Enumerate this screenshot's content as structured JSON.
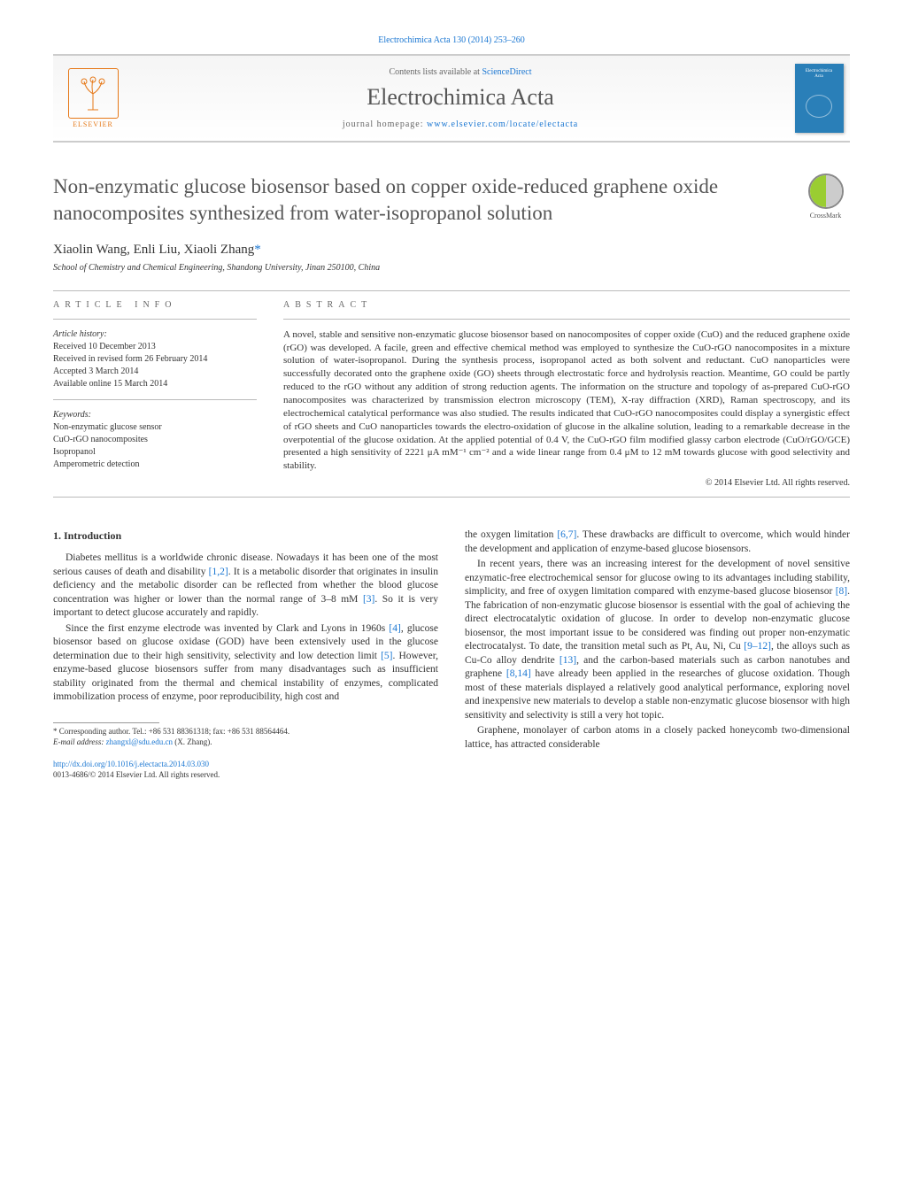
{
  "meta": {
    "citation": "Electrochimica Acta 130 (2014) 253–260",
    "citation_link_text": "Electrochimica Acta 130 (2014) 253–260"
  },
  "header": {
    "publisher": "ELSEVIER",
    "contents_text": "Contents lists available at ",
    "contents_link": "ScienceDirect",
    "journal": "Electrochimica Acta",
    "homepage_label": "journal homepage: ",
    "homepage_url": "www.elsevier.com/locate/electacta",
    "cover_line1": "Electrochimica",
    "cover_line2": "Acta"
  },
  "crossmark": {
    "label": "CrossMark"
  },
  "title": "Non-enzymatic glucose biosensor based on copper oxide-reduced graphene oxide nanocomposites synthesized from water-isopropanol solution",
  "authors": "Xiaolin Wang, Enli Liu, Xiaoli Zhang",
  "corr_symbol": "*",
  "affiliation": "School of Chemistry and Chemical Engineering, Shandong University, Jinan 250100, China",
  "info": {
    "heading": "ARTICLE INFO",
    "history_label": "Article history:",
    "received": "Received 10 December 2013",
    "revised": "Received in revised form 26 February 2014",
    "accepted": "Accepted 3 March 2014",
    "online": "Available online 15 March 2014",
    "keywords_label": "Keywords:",
    "kw1": "Non-enzymatic glucose sensor",
    "kw2": "CuO-rGO nanocomposites",
    "kw3": "Isopropanol",
    "kw4": "Amperometric detection"
  },
  "abstract": {
    "heading": "ABSTRACT",
    "text": "A novel, stable and sensitive non-enzymatic glucose biosensor based on nanocomposites of copper oxide (CuO) and the reduced graphene oxide (rGO) was developed. A facile, green and effective chemical method was employed to synthesize the CuO-rGO nanocomposites in a mixture solution of water-isopropanol. During the synthesis process, isopropanol acted as both solvent and reductant. CuO nanoparticles were successfully decorated onto the graphene oxide (GO) sheets through electrostatic force and hydrolysis reaction. Meantime, GO could be partly reduced to the rGO without any addition of strong reduction agents. The information on the structure and topology of as-prepared CuO-rGO nanocomposites was characterized by transmission electron microscopy (TEM), X-ray diffraction (XRD), Raman spectroscopy, and its electrochemical catalytical performance was also studied. The results indicated that CuO-rGO nanocomposites could display a synergistic effect of rGO sheets and CuO nanoparticles towards the electro-oxidation of glucose in the alkaline solution, leading to a remarkable decrease in the overpotential of the glucose oxidation. At the applied potential of 0.4 V, the CuO-rGO film modified glassy carbon electrode (CuO/rGO/GCE) presented a high sensitivity of 2221 μA mM⁻¹ cm⁻² and a wide linear range from 0.4 μM to 12 mM towards glucose with good selectivity and stability.",
    "copyright": "© 2014 Elsevier Ltd. All rights reserved."
  },
  "body": {
    "heading1": "1. Introduction",
    "col1p1": "Diabetes mellitus is a worldwide chronic disease. Nowadays it has been one of the most serious causes of death and disability [1,2]. It is a metabolic disorder that originates in insulin deficiency and the metabolic disorder can be reflected from whether the blood glucose concentration was higher or lower than the normal range of 3–8 mM [3]. So it is very important to detect glucose accurately and rapidly.",
    "col1p2": "Since the first enzyme electrode was invented by Clark and Lyons in 1960s [4], glucose biosensor based on glucose oxidase (GOD) have been extensively used in the glucose determination due to their high sensitivity, selectivity and low detection limit [5]. However, enzyme-based glucose biosensors suffer from many disadvantages such as insufficient stability originated from the thermal and chemical instability of enzymes, complicated immobilization process of enzyme, poor reproducibility, high cost and",
    "col2p1": "the oxygen limitation [6,7]. These drawbacks are difficult to overcome, which would hinder the development and application of enzyme-based glucose biosensors.",
    "col2p2": "In recent years, there was an increasing interest for the development of novel sensitive enzymatic-free electrochemical sensor for glucose owing to its advantages including stability, simplicity, and free of oxygen limitation compared with enzyme-based glucose biosensor [8]. The fabrication of non-enzymatic glucose biosensor is essential with the goal of achieving the direct electrocatalytic oxidation of glucose. In order to develop non-enzymatic glucose biosensor, the most important issue to be considered was finding out proper non-enzymatic electrocatalyst. To date, the transition metal such as Pt, Au, Ni, Cu [9–12], the alloys such as Cu-Co alloy dendrite [13], and the carbon-based materials such as carbon nanotubes and graphene [8,14] have already been applied in the researches of glucose oxidation. Though most of these materials displayed a relatively good analytical performance, exploring novel and inexpensive new materials to develop a stable non-enzymatic glucose biosensor with high sensitivity and selectivity is still a very hot topic.",
    "col2p3": "Graphene, monolayer of carbon atoms in a closely packed honeycomb two-dimensional lattice, has attracted considerable"
  },
  "footnote": {
    "corr_label": "* Corresponding author. Tel.: +86 531 88361318; fax: +86 531 88564464.",
    "email_label": "E-mail address: ",
    "email": "zhangxl@sdu.edu.cn",
    "email_person": " (X. Zhang)."
  },
  "doi": {
    "url": "http://dx.doi.org/10.1016/j.electacta.2014.03.030",
    "issn_copy": "0013-4686/© 2014 Elsevier Ltd. All rights reserved."
  },
  "colors": {
    "link": "#1976d2",
    "orange": "#e67817",
    "cover": "#2a7fb8",
    "title_gray": "#565656"
  }
}
